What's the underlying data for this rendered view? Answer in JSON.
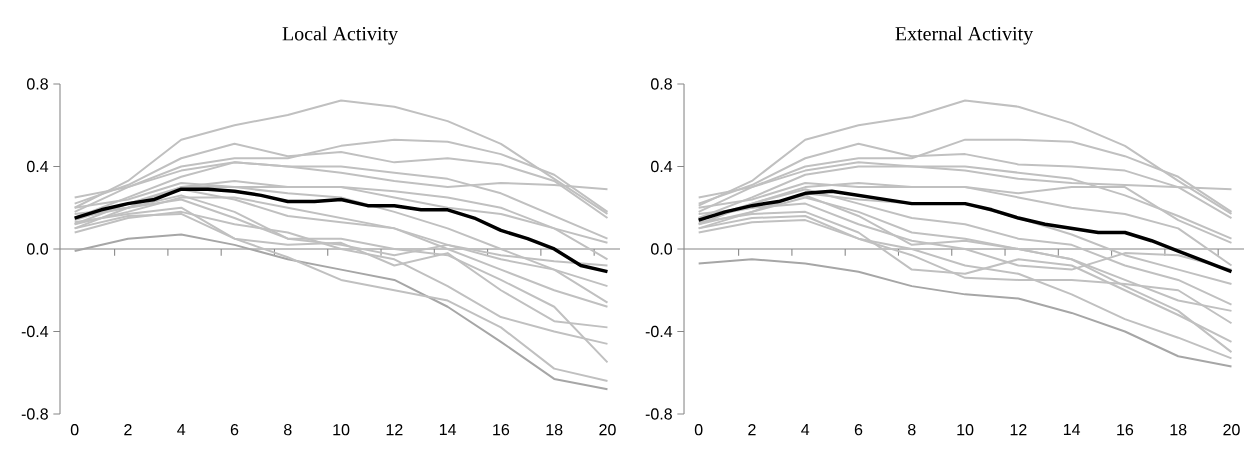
{
  "chart_data": [
    {
      "type": "line",
      "title": "Local Activity",
      "x": [
        0,
        2,
        4,
        6,
        8,
        10,
        12,
        14,
        16,
        18,
        20
      ],
      "xlim": [
        -0.55,
        20.47
      ],
      "ylim": [
        -0.8,
        0.8
      ],
      "xticks": [
        0,
        2,
        4,
        6,
        8,
        10,
        12,
        14,
        16,
        18,
        20,
        {
          "value": 1.5,
          "label": null
        },
        {
          "value": 3.5,
          "label": null
        },
        {
          "value": 5.5,
          "label": null
        },
        {
          "value": 7.5,
          "label": null
        },
        {
          "value": 9.5,
          "label": null
        },
        {
          "value": 11.5,
          "label": null
        },
        {
          "value": 13.5,
          "label": null
        },
        {
          "value": 15.5,
          "label": null
        },
        {
          "value": 17.5,
          "label": null
        },
        {
          "value": 19.5,
          "label": null
        }
      ],
      "yticks": [
        {
          "value": -0.8,
          "label": "-0.8"
        },
        {
          "value": -0.4,
          "label": "-0.4"
        },
        {
          "value": 0,
          "label": "0.0"
        },
        {
          "value": 0.4,
          "label": "0.4"
        },
        {
          "value": 0.8,
          "label": "0.8"
        }
      ],
      "series": [
        {
          "color": "#c0c0c0",
          "values": [
            0.2,
            0.33,
            0.53,
            0.6,
            0.65,
            0.72,
            0.69,
            0.62,
            0.51,
            0.34,
            0.17
          ]
        },
        {
          "color": "#c0c0c0",
          "values": [
            0.22,
            0.31,
            0.44,
            0.51,
            0.45,
            0.47,
            0.42,
            0.44,
            0.41,
            0.33,
            0.15
          ]
        },
        {
          "color": "#c0c0c0",
          "values": [
            0.18,
            0.3,
            0.4,
            0.44,
            0.44,
            0.5,
            0.53,
            0.52,
            0.46,
            0.36,
            0.18
          ]
        },
        {
          "color": "#c0c0c0",
          "values": [
            0.25,
            0.3,
            0.38,
            0.42,
            0.4,
            0.37,
            0.33,
            0.3,
            0.32,
            0.31,
            0.29
          ]
        },
        {
          "color": "#c0c0c0",
          "values": [
            0.15,
            0.25,
            0.35,
            0.42,
            0.4,
            0.4,
            0.37,
            0.34,
            0.27,
            0.16,
            0.05
          ]
        },
        {
          "color": "#c0c0c0",
          "values": [
            0.12,
            0.22,
            0.3,
            0.33,
            0.3,
            0.3,
            0.28,
            0.25,
            0.2,
            0.1,
            0.03
          ]
        },
        {
          "color": "#c0c0c0",
          "values": [
            0.1,
            0.2,
            0.3,
            0.3,
            0.27,
            0.25,
            0.18,
            0.1,
            0.0,
            -0.1,
            -0.18
          ]
        },
        {
          "color": "#c0c0c0",
          "values": [
            0.12,
            0.18,
            0.25,
            0.25,
            0.2,
            0.15,
            0.1,
            0.0,
            -0.1,
            -0.2,
            -0.28
          ]
        },
        {
          "color": "#a6a6a6",
          "values": [
            -0.01,
            0.05,
            0.07,
            0.02,
            -0.05,
            -0.1,
            -0.15,
            -0.28,
            -0.45,
            -0.63,
            -0.68
          ]
        },
        {
          "color": "#c0c0c0",
          "values": [
            0.1,
            0.16,
            0.17,
            0.05,
            -0.04,
            -0.15,
            -0.2,
            -0.25,
            -0.38,
            -0.58,
            -0.64
          ]
        },
        {
          "color": "#c0c0c0",
          "values": [
            0.08,
            0.15,
            0.18,
            0.12,
            0.08,
            0.0,
            -0.05,
            -0.18,
            -0.33,
            -0.4,
            -0.46
          ]
        },
        {
          "color": "#c0c0c0",
          "values": [
            0.15,
            0.2,
            0.26,
            0.18,
            0.05,
            0.05,
            0.0,
            -0.03,
            -0.15,
            -0.28,
            -0.55
          ]
        },
        {
          "color": "#c0c0c0",
          "values": [
            0.13,
            0.17,
            0.2,
            0.05,
            0.02,
            0.03,
            -0.08,
            -0.02,
            -0.2,
            -0.35,
            -0.38
          ]
        },
        {
          "color": "#c0c0c0",
          "values": [
            0.14,
            0.22,
            0.29,
            0.24,
            0.16,
            0.13,
            0.1,
            0.02,
            -0.05,
            -0.1,
            -0.26
          ]
        },
        {
          "color": "#c0c0c0",
          "values": [
            0.2,
            0.24,
            0.32,
            0.3,
            0.3,
            0.3,
            0.25,
            0.2,
            0.17,
            0.1,
            -0.05
          ]
        },
        {
          "color": "#c0c0c0",
          "values": [
            0.17,
            0.2,
            0.24,
            0.15,
            0.05,
            0.02,
            -0.03,
            0.02,
            -0.03,
            -0.06,
            -0.08
          ]
        },
        {
          "color": "#000000",
          "x": [
            0,
            1,
            2,
            3,
            4,
            5,
            6,
            7,
            8,
            9,
            10,
            11,
            12,
            13,
            14,
            15,
            16,
            17,
            18,
            19,
            20
          ],
          "values": [
            0.15,
            0.19,
            0.22,
            0.24,
            0.29,
            0.29,
            0.28,
            0.26,
            0.23,
            0.23,
            0.24,
            0.21,
            0.21,
            0.19,
            0.19,
            0.15,
            0.09,
            0.05,
            0.0,
            -0.08,
            -0.11
          ]
        }
      ]
    },
    {
      "type": "line",
      "title": "External Activity",
      "x": [
        0,
        2,
        4,
        6,
        8,
        10,
        12,
        14,
        16,
        18,
        20
      ],
      "xlim": [
        -0.55,
        20.47
      ],
      "ylim": [
        -0.8,
        0.8
      ],
      "xticks": [
        0,
        2,
        4,
        6,
        8,
        10,
        12,
        14,
        16,
        18,
        20,
        {
          "value": 1.5,
          "label": null
        },
        {
          "value": 3.5,
          "label": null
        },
        {
          "value": 5.5,
          "label": null
        },
        {
          "value": 7.5,
          "label": null
        },
        {
          "value": 9.5,
          "label": null
        },
        {
          "value": 11.5,
          "label": null
        },
        {
          "value": 13.5,
          "label": null
        },
        {
          "value": 15.5,
          "label": null
        },
        {
          "value": 17.5,
          "label": null
        },
        {
          "value": 19.5,
          "label": null
        }
      ],
      "yticks": [
        {
          "value": -0.8,
          "label": "-0.8"
        },
        {
          "value": -0.4,
          "label": "-0.4"
        },
        {
          "value": 0,
          "label": "0.0"
        },
        {
          "value": 0.4,
          "label": "0.4"
        },
        {
          "value": 0.8,
          "label": "0.8"
        }
      ],
      "series": [
        {
          "color": "#c0c0c0",
          "values": [
            0.21,
            0.33,
            0.53,
            0.6,
            0.64,
            0.72,
            0.69,
            0.61,
            0.5,
            0.33,
            0.17
          ]
        },
        {
          "color": "#c0c0c0",
          "values": [
            0.22,
            0.31,
            0.44,
            0.51,
            0.45,
            0.46,
            0.41,
            0.4,
            0.38,
            0.3,
            0.15
          ]
        },
        {
          "color": "#c0c0c0",
          "values": [
            0.18,
            0.3,
            0.4,
            0.44,
            0.44,
            0.53,
            0.53,
            0.52,
            0.45,
            0.35,
            0.18
          ]
        },
        {
          "color": "#c0c0c0",
          "values": [
            0.25,
            0.3,
            0.38,
            0.42,
            0.4,
            0.38,
            0.34,
            0.32,
            0.31,
            0.3,
            0.29
          ]
        },
        {
          "color": "#c0c0c0",
          "values": [
            0.15,
            0.25,
            0.36,
            0.4,
            0.4,
            0.4,
            0.37,
            0.34,
            0.26,
            0.16,
            0.05
          ]
        },
        {
          "color": "#c0c0c0",
          "values": [
            0.12,
            0.22,
            0.3,
            0.32,
            0.3,
            0.3,
            0.27,
            0.3,
            0.3,
            0.14,
            0.03
          ]
        },
        {
          "color": "#c0c0c0",
          "values": [
            0.1,
            0.18,
            0.27,
            0.24,
            0.22,
            0.22,
            0.15,
            0.07,
            -0.03,
            -0.1,
            -0.17
          ]
        },
        {
          "color": "#c0c0c0",
          "values": [
            0.12,
            0.18,
            0.25,
            0.18,
            0.08,
            0.05,
            0.0,
            -0.05,
            -0.15,
            -0.25,
            -0.3
          ]
        },
        {
          "color": "#a6a6a6",
          "values": [
            -0.07,
            -0.05,
            -0.07,
            -0.11,
            -0.18,
            -0.22,
            -0.24,
            -0.31,
            -0.4,
            -0.52,
            -0.57
          ]
        },
        {
          "color": "#c0c0c0",
          "values": [
            0.1,
            0.15,
            0.16,
            0.05,
            0.0,
            -0.08,
            -0.12,
            -0.22,
            -0.34,
            -0.43,
            -0.53
          ]
        },
        {
          "color": "#c0c0c0",
          "values": [
            0.08,
            0.13,
            0.14,
            0.05,
            -0.03,
            -0.14,
            -0.15,
            -0.15,
            -0.17,
            -0.2,
            -0.36
          ]
        },
        {
          "color": "#c0c0c0",
          "values": [
            0.15,
            0.2,
            0.26,
            0.16,
            0.02,
            0.04,
            0.0,
            -0.05,
            -0.18,
            -0.3,
            -0.5
          ]
        },
        {
          "color": "#c0c0c0",
          "values": [
            0.13,
            0.17,
            0.18,
            0.08,
            -0.1,
            -0.12,
            -0.05,
            -0.08,
            -0.2,
            -0.32,
            -0.45
          ]
        },
        {
          "color": "#c0c0c0",
          "values": [
            0.14,
            0.22,
            0.29,
            0.22,
            0.15,
            0.12,
            0.05,
            0.02,
            -0.08,
            -0.15,
            -0.27
          ]
        },
        {
          "color": "#c0c0c0",
          "values": [
            0.2,
            0.24,
            0.32,
            0.3,
            0.3,
            0.3,
            0.25,
            0.2,
            0.17,
            0.1,
            -0.08
          ]
        },
        {
          "color": "#c0c0c0",
          "values": [
            0.17,
            0.2,
            0.22,
            0.12,
            0.04,
            0.0,
            -0.08,
            -0.1,
            -0.02,
            -0.03,
            -0.1
          ]
        },
        {
          "color": "#000000",
          "x": [
            0,
            1,
            2,
            3,
            4,
            5,
            6,
            7,
            8,
            9,
            10,
            11,
            12,
            13,
            14,
            15,
            16,
            17,
            18,
            19,
            20
          ],
          "values": [
            0.14,
            0.18,
            0.21,
            0.23,
            0.27,
            0.28,
            0.26,
            0.24,
            0.22,
            0.22,
            0.22,
            0.19,
            0.15,
            0.12,
            0.1,
            0.08,
            0.08,
            0.04,
            -0.01,
            -0.06,
            -0.11
          ]
        }
      ]
    }
  ]
}
